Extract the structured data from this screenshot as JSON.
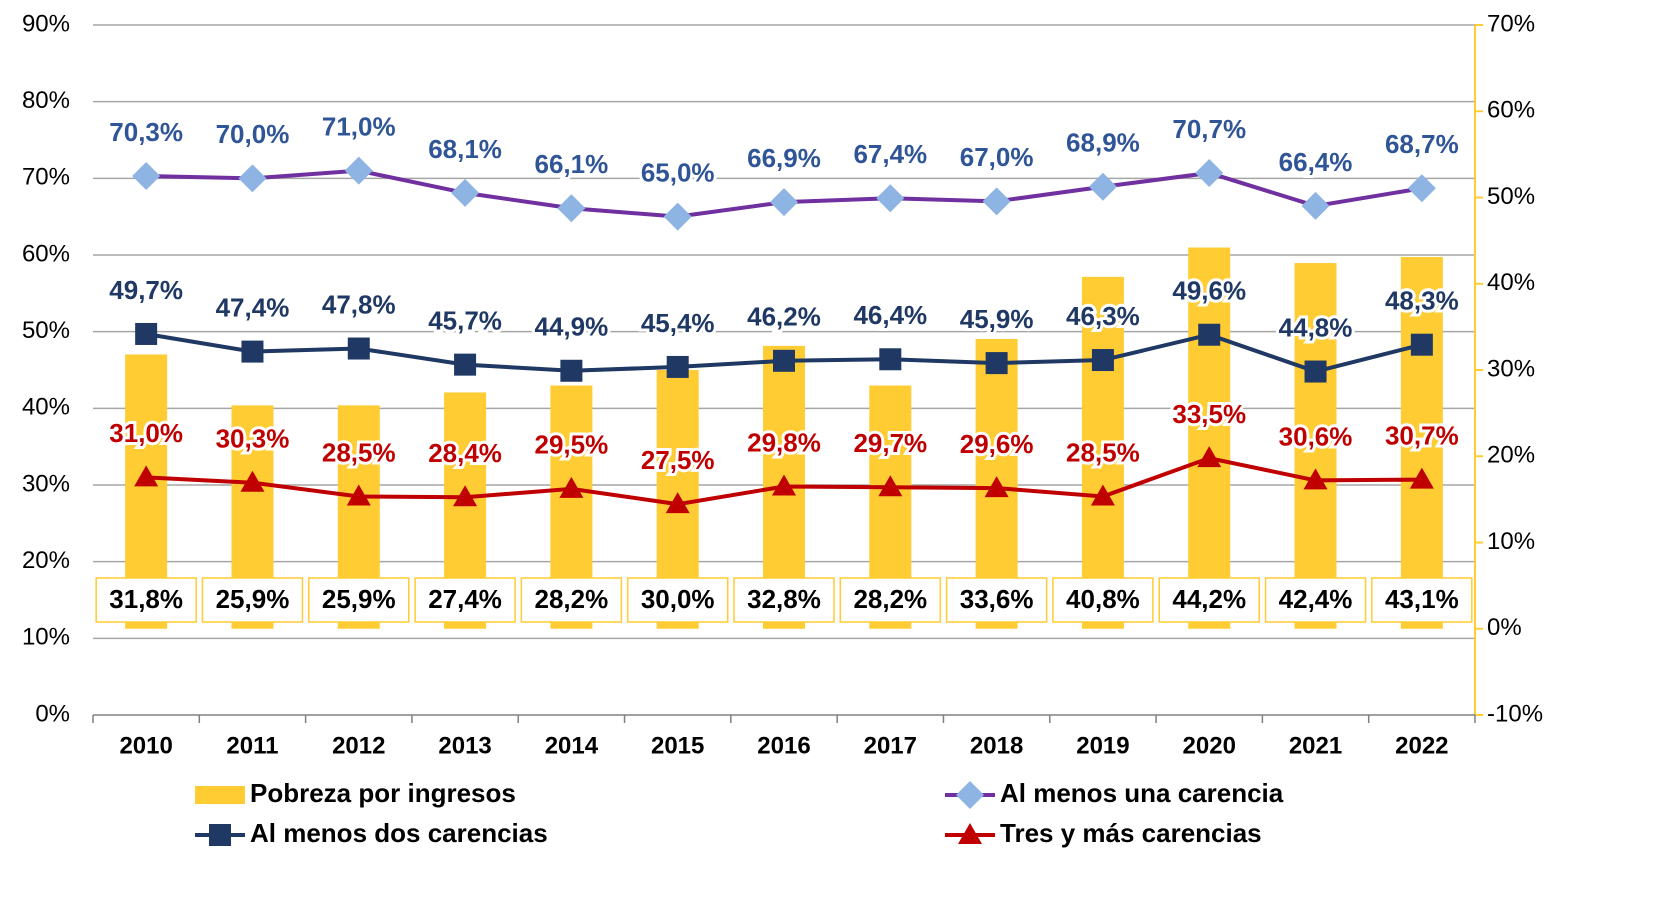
{
  "chart_data": {
    "type": "bar-line",
    "categories": [
      "2010",
      "2011",
      "2012",
      "2013",
      "2014",
      "2015",
      "2016",
      "2017",
      "2018",
      "2019",
      "2020",
      "2021",
      "2022"
    ],
    "series": [
      {
        "name": "Pobreza por ingresos",
        "type": "bar",
        "axis": "y2",
        "color": "#FFCC33",
        "values": [
          31.8,
          25.9,
          25.9,
          27.4,
          28.2,
          30.0,
          32.8,
          28.2,
          33.6,
          40.8,
          44.2,
          42.4,
          43.1
        ],
        "value_labels": [
          "31,8%",
          "25,9%",
          "25,9%",
          "27,4%",
          "28,2%",
          "30,0%",
          "32,8%",
          "28,2%",
          "33,6%",
          "40,8%",
          "44,2%",
          "42,4%",
          "43,1%"
        ]
      },
      {
        "name": "Al menos una carencia",
        "type": "line",
        "color": "#7030A0",
        "marker": "diamond",
        "marker_color": "#8EB4E3",
        "label_color": "#2F5597",
        "values": [
          70.3,
          70.0,
          71.0,
          68.1,
          66.1,
          65.0,
          66.9,
          67.4,
          67.0,
          68.9,
          70.7,
          66.4,
          68.7
        ],
        "value_labels": [
          "70,3%",
          "70,0%",
          "71,0%",
          "68,1%",
          "66,1%",
          "65,0%",
          "66,9%",
          "67,4%",
          "67,0%",
          "68,9%",
          "70,7%",
          "66,4%",
          "68,7%"
        ]
      },
      {
        "name": "Al menos dos carencias",
        "type": "line",
        "color": "#1F3864",
        "marker": "square",
        "marker_color": "#1F3864",
        "label_color": "#1F3864",
        "values": [
          49.7,
          47.4,
          47.8,
          45.7,
          44.9,
          45.4,
          46.2,
          46.4,
          45.9,
          46.3,
          49.6,
          44.8,
          48.3
        ],
        "value_labels": [
          "49,7%",
          "47,4%",
          "47,8%",
          "45,7%",
          "44,9%",
          "45,4%",
          "46,2%",
          "46,4%",
          "45,9%",
          "46,3%",
          "49,6%",
          "44,8%",
          "48,3%"
        ]
      },
      {
        "name": "Tres y más carencias",
        "type": "line",
        "color": "#C00000",
        "marker": "triangle",
        "marker_color": "#C00000",
        "label_color": "#C00000",
        "values": [
          31.0,
          30.3,
          28.5,
          28.4,
          29.5,
          27.5,
          29.8,
          29.7,
          29.6,
          28.5,
          33.5,
          30.6,
          30.7
        ],
        "value_labels": [
          "31,0%",
          "30,3%",
          "28,5%",
          "28,4%",
          "29,5%",
          "27,5%",
          "29,8%",
          "29,7%",
          "29,6%",
          "28,5%",
          "33,5%",
          "30,6%",
          "30,7%"
        ]
      }
    ],
    "ylim": [
      0,
      90
    ],
    "yticks": [
      {
        "value": 0,
        "label": "0%"
      },
      {
        "value": 10,
        "label": "10%"
      },
      {
        "value": 20,
        "label": "20%"
      },
      {
        "value": 30,
        "label": "30%"
      },
      {
        "value": 40,
        "label": "40%"
      },
      {
        "value": 50,
        "label": "50%"
      },
      {
        "value": 60,
        "label": "60%"
      },
      {
        "value": 70,
        "label": "70%"
      },
      {
        "value": 80,
        "label": "80%"
      },
      {
        "value": 90,
        "label": "90%"
      }
    ],
    "y2lim": [
      -10,
      70
    ],
    "y2ticks": [
      {
        "value": -10,
        "label": "-10%"
      },
      {
        "value": 0,
        "label": "0%"
      },
      {
        "value": 10,
        "label": "10%"
      },
      {
        "value": 20,
        "label": "20%"
      },
      {
        "value": 30,
        "label": "30%"
      },
      {
        "value": 40,
        "label": "40%"
      },
      {
        "value": 50,
        "label": "50%"
      },
      {
        "value": 60,
        "label": "60%"
      },
      {
        "value": 70,
        "label": "70%"
      }
    ],
    "grid": true,
    "legend": "bottom"
  }
}
